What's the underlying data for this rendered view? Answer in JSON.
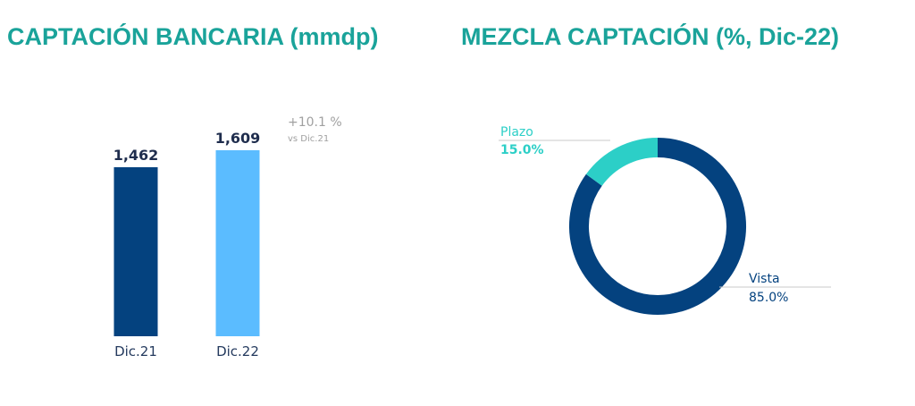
{
  "left_title": "CAPTACIÓN BANCARIA (mmdp)",
  "right_title": "MEZCLA CAPTACIÓN (%, Dic-22)",
  "colors": {
    "title": "#1aa39a",
    "dark_blue": "#04427f",
    "light_blue": "#5bbcff",
    "teal": "#2ccfc7",
    "grey_text": "#a0a0a0",
    "axis_text": "#243a5e"
  },
  "chart_data": [
    {
      "type": "bar",
      "title": "CAPTACIÓN BANCARIA (mmdp)",
      "categories": [
        "Dic.21",
        "Dic.22"
      ],
      "values": [
        1462,
        1609
      ],
      "value_labels": [
        "1,462",
        "1,609"
      ],
      "bar_colors": [
        "#04427f",
        "#5bbcff"
      ],
      "ylim": [
        0,
        1609
      ],
      "grid": false,
      "annotation": {
        "main": "+10.1 %",
        "sub": "vs Dic.21"
      }
    },
    {
      "type": "pie",
      "title": "MEZCLA CAPTACIÓN (%, Dic-22)",
      "donut": true,
      "slices": [
        {
          "label": "Vista",
          "value": 85.0,
          "value_label": "85.0%",
          "color": "#04427f"
        },
        {
          "label": "Plazo",
          "value": 15.0,
          "value_label": "15.0%",
          "color": "#2ccfc7"
        }
      ]
    }
  ]
}
